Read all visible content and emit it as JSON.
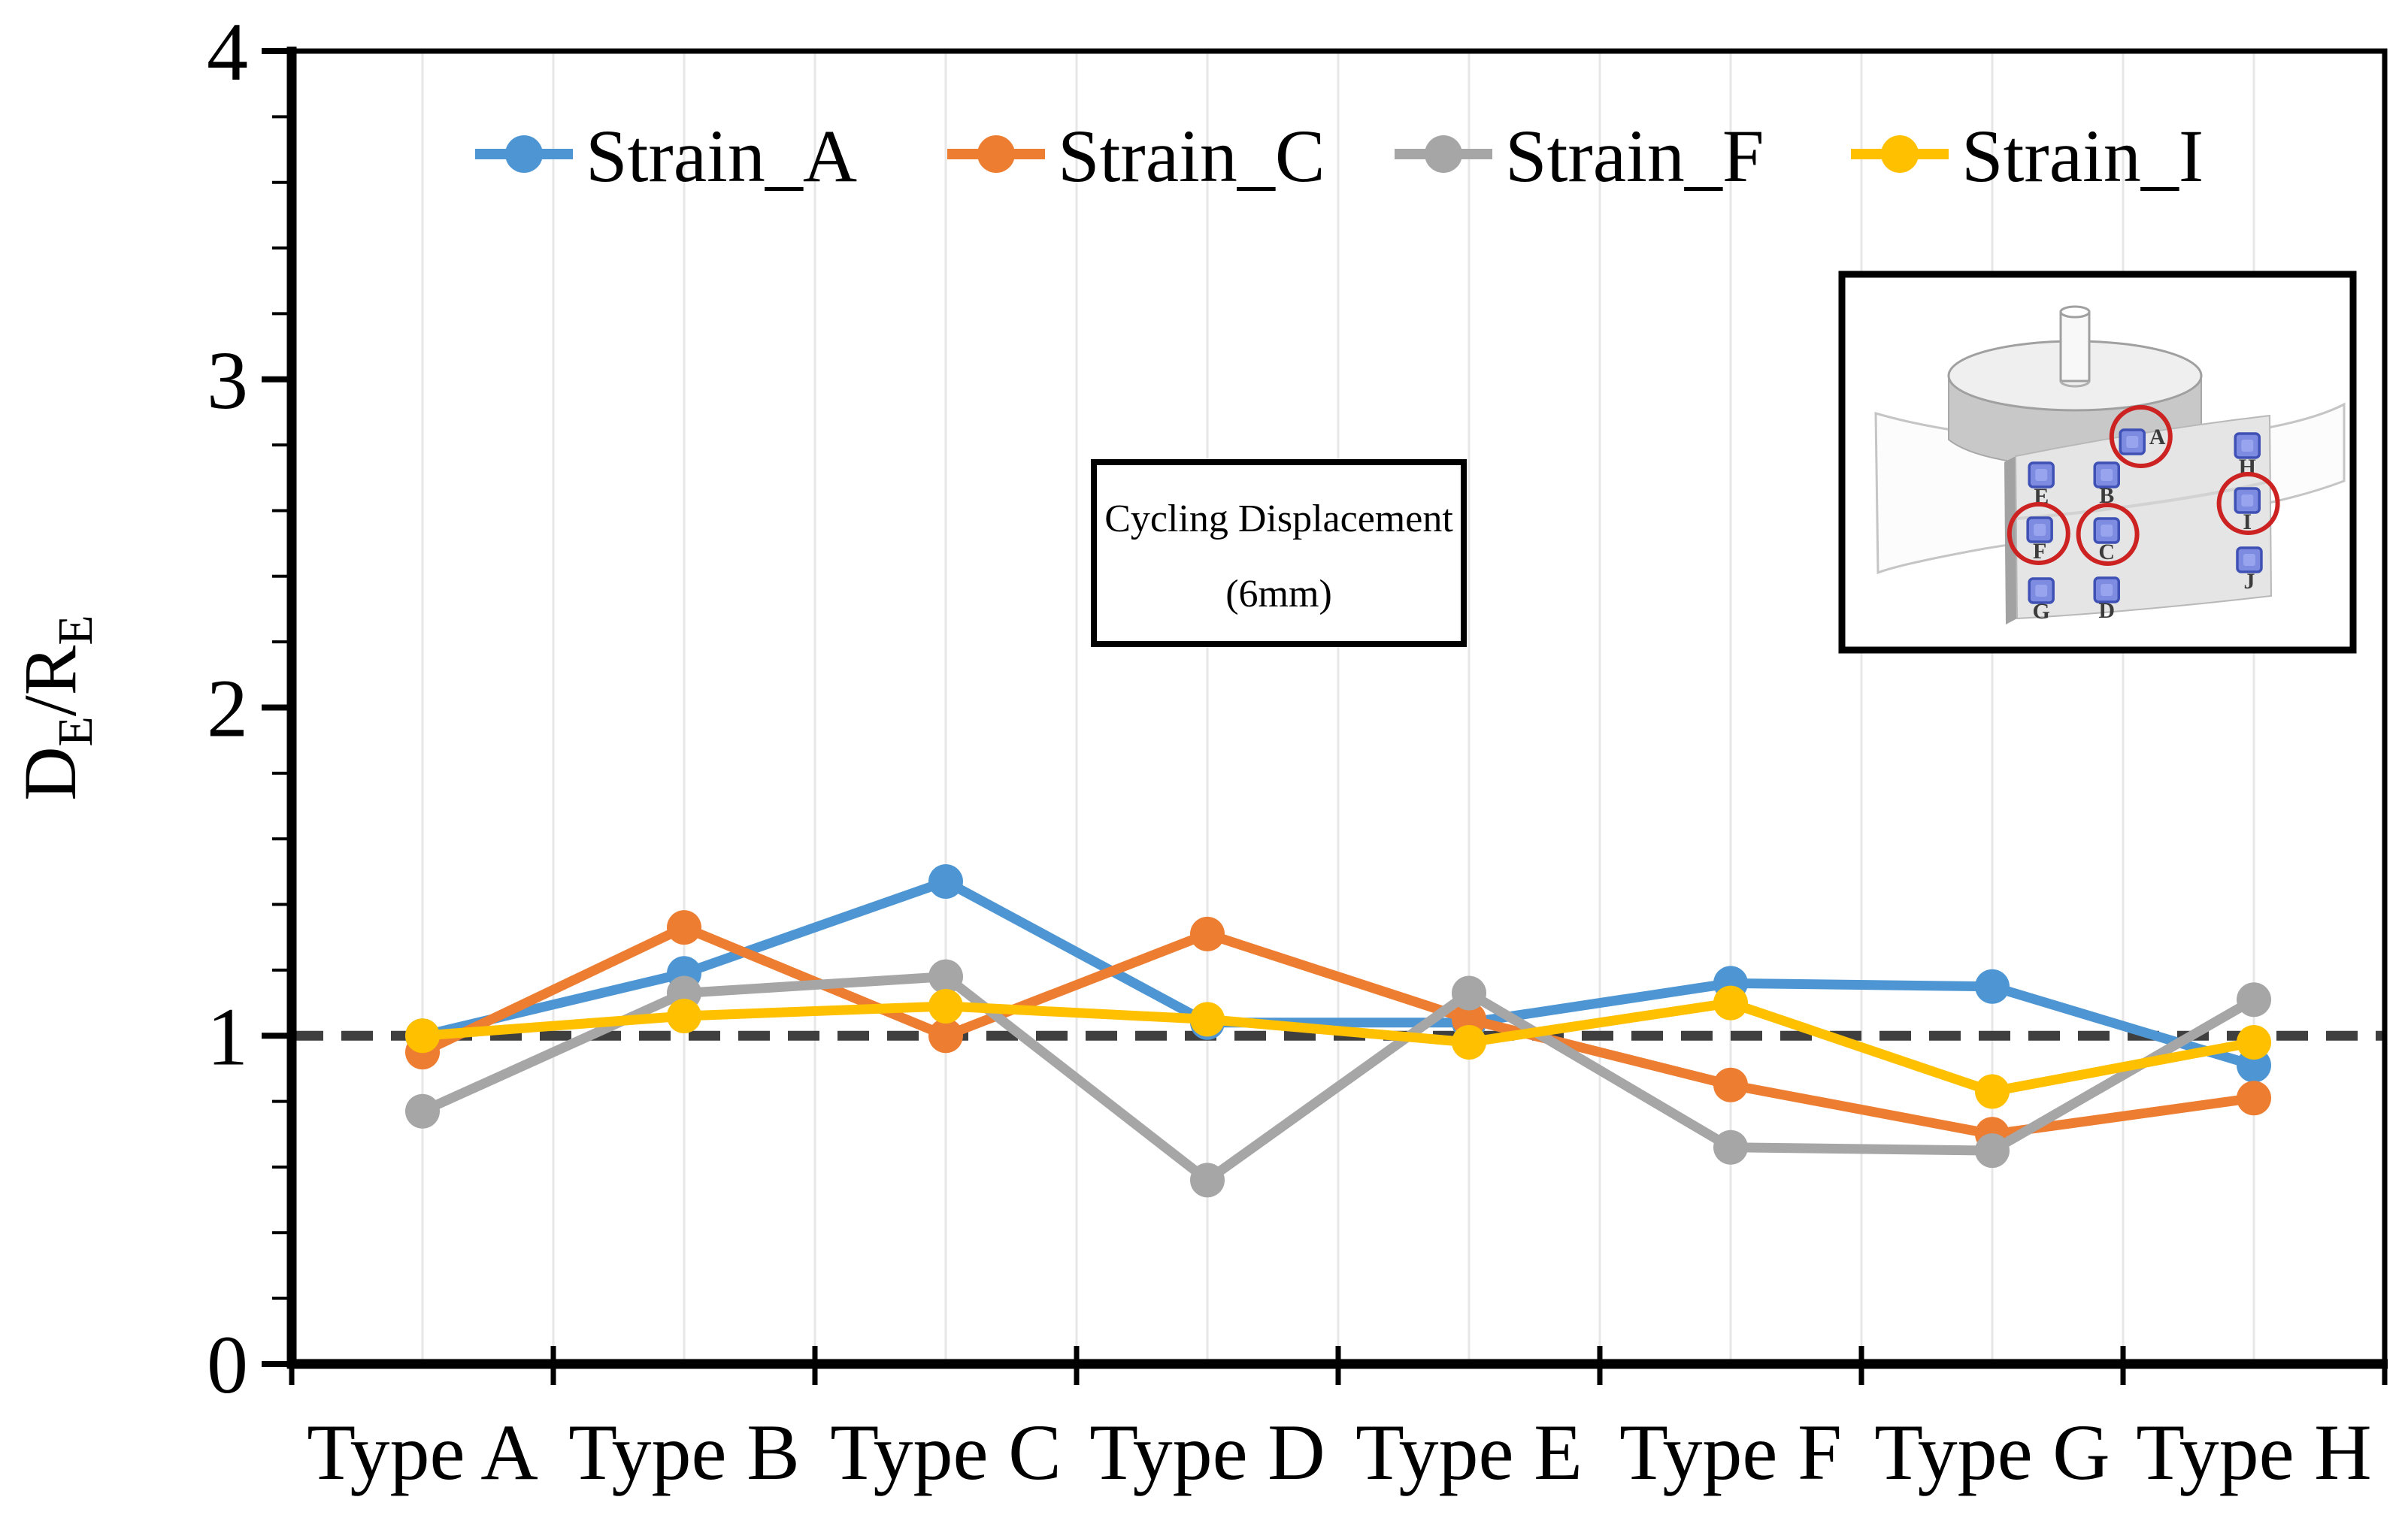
{
  "chart_data": {
    "type": "line",
    "categories": [
      "Type A",
      "Type B",
      "Type C",
      "Type D",
      "Type E",
      "Type F",
      "Type G",
      "Type H"
    ],
    "series": [
      {
        "name": "Strain_A",
        "color": "#4E96D3",
        "values": [
          1.0,
          1.19,
          1.47,
          1.04,
          1.04,
          1.16,
          1.15,
          0.91
        ]
      },
      {
        "name": "Strain_C",
        "color": "#ED7D31",
        "values": [
          0.95,
          1.33,
          1.0,
          1.31,
          1.05,
          0.85,
          0.7,
          0.81
        ]
      },
      {
        "name": "Strain_F",
        "color": "#A6A6A6",
        "values": [
          0.77,
          1.13,
          1.18,
          0.56,
          1.13,
          0.66,
          0.65,
          1.11
        ]
      },
      {
        "name": "Strain_I",
        "color": "#FFC000",
        "values": [
          1.0,
          1.06,
          1.09,
          1.05,
          0.98,
          1.1,
          0.83,
          0.98
        ]
      }
    ],
    "ylabel_rich": [
      {
        "t": "D",
        "sub": false
      },
      {
        "t": "E",
        "sub": true
      },
      {
        "t": "/R",
        "sub": false
      },
      {
        "t": "E",
        "sub": true
      }
    ],
    "ylim": [
      0,
      4
    ],
    "yticks": [
      0,
      1,
      2,
      3,
      4
    ],
    "y_minor_step": 0.2,
    "grid": "vertical-light",
    "gridline_color": "#E7E7E7",
    "reference_line": {
      "value": 1,
      "style": "dashed",
      "color": "#3F3F3F"
    },
    "legend": {
      "position": "top-inside",
      "entries": [
        "Strain_A",
        "Strain_C",
        "Strain_F",
        "Strain_I"
      ]
    },
    "annotation": {
      "line1": "Cycling Displacement",
      "line2": "(6mm)"
    }
  },
  "inset": {
    "description": "specimen schematic: cylinder with pin and curved sensor plate",
    "sensor_color": "#7D8BE0",
    "sensor_border": "#3F51B5",
    "circle_color": "#CC2222",
    "sensors": [
      {
        "id": "A",
        "fx": 0.568,
        "fy": 0.446,
        "lfx": 0.617,
        "lfy": 0.452,
        "circled": true,
        "cfx": 0.585,
        "cfy": 0.432
      },
      {
        "id": "E",
        "fx": 0.39,
        "fy": 0.534,
        "lfx": 0.39,
        "lfy": 0.61,
        "circled": false
      },
      {
        "id": "B",
        "fx": 0.518,
        "fy": 0.534,
        "lfx": 0.518,
        "lfy": 0.608,
        "circled": false
      },
      {
        "id": "H",
        "fx": 0.793,
        "fy": 0.456,
        "lfx": 0.793,
        "lfy": 0.532,
        "circled": false
      },
      {
        "id": "F",
        "fx": 0.387,
        "fy": 0.68,
        "lfx": 0.387,
        "lfy": 0.756,
        "circled": true,
        "cfx": 0.385,
        "cfy": 0.69
      },
      {
        "id": "C",
        "fx": 0.518,
        "fy": 0.682,
        "lfx": 0.518,
        "lfy": 0.758,
        "circled": true,
        "cfx": 0.52,
        "cfy": 0.692
      },
      {
        "id": "I",
        "fx": 0.793,
        "fy": 0.602,
        "lfx": 0.793,
        "lfy": 0.678,
        "circled": true,
        "cfx": 0.795,
        "cfy": 0.61
      },
      {
        "id": "G",
        "fx": 0.39,
        "fy": 0.842,
        "lfx": 0.39,
        "lfy": 0.916,
        "circled": false
      },
      {
        "id": "D",
        "fx": 0.518,
        "fy": 0.84,
        "lfx": 0.518,
        "lfy": 0.914,
        "circled": false
      },
      {
        "id": "J",
        "fx": 0.797,
        "fy": 0.76,
        "lfx": 0.797,
        "lfy": 0.836,
        "circled": false
      }
    ]
  }
}
